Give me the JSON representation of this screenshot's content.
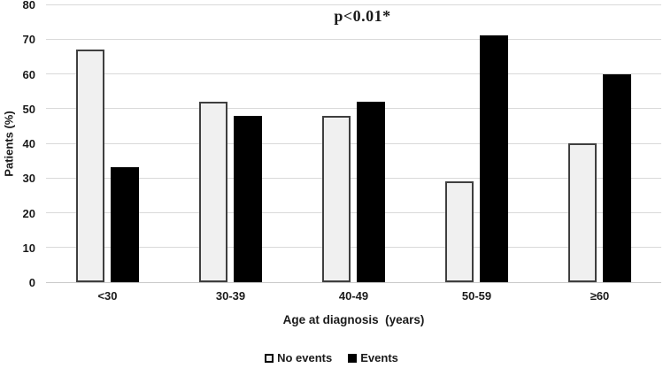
{
  "figure": {
    "annotation": "p<0.01*",
    "x_axis_title": "Age at diagnosis  (years)",
    "y_axis_title": "Patients (%)"
  },
  "legend": {
    "items": [
      {
        "swatch": "white-square-outline",
        "label": "No events"
      },
      {
        "swatch": "black-square",
        "label": "Events"
      }
    ]
  },
  "chart_data": {
    "type": "bar",
    "title": "",
    "annotation": "p<0.01*",
    "categories": [
      "<30",
      "30-39",
      "40-49",
      "50-59",
      "≥60"
    ],
    "series": [
      {
        "name": "No events",
        "fill": "#f0f0f0",
        "border": "#3f3f3f",
        "values": [
          67,
          52,
          48,
          29,
          40
        ]
      },
      {
        "name": "Events",
        "fill": "#000000",
        "border": "#000000",
        "values": [
          33,
          48,
          52,
          71,
          60
        ]
      }
    ],
    "xlabel": "Age at diagnosis  (years)",
    "ylabel": "Patients (%)",
    "ylim": [
      0,
      80
    ],
    "yticks": [
      0,
      10,
      20,
      30,
      40,
      50,
      60,
      70,
      80
    ],
    "grid": "horizontal",
    "gridline_color": "#d9d9d9",
    "legend_position": "bottom-center",
    "colors": {
      "no_events_fill": "#f0f0f0",
      "no_events_border": "#3f3f3f",
      "events_fill": "#000000",
      "text": "#1a1a1a"
    }
  }
}
